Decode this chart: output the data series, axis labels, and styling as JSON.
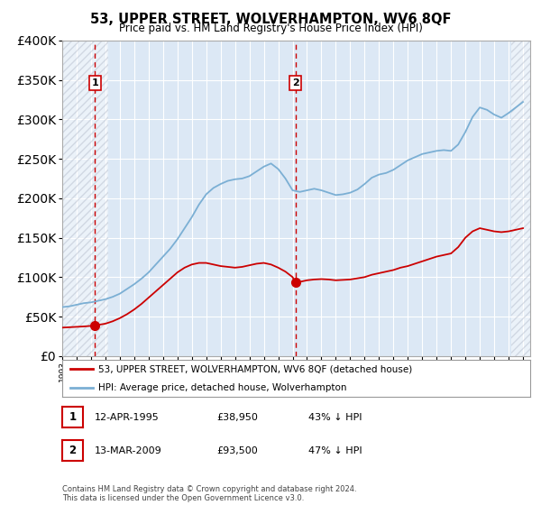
{
  "title": "53, UPPER STREET, WOLVERHAMPTON, WV6 8QF",
  "subtitle": "Price paid vs. HM Land Registry's House Price Index (HPI)",
  "legend_line1": "53, UPPER STREET, WOLVERHAMPTON, WV6 8QF (detached house)",
  "legend_line2": "HPI: Average price, detached house, Wolverhampton",
  "footnote": "Contains HM Land Registry data © Crown copyright and database right 2024.\nThis data is licensed under the Open Government Licence v3.0.",
  "sale1_date": "12-APR-1995",
  "sale1_price": "£38,950",
  "sale1_hpi": "43% ↓ HPI",
  "sale2_date": "13-MAR-2009",
  "sale2_price": "£93,500",
  "sale2_hpi": "47% ↓ HPI",
  "sale1_x": 1995.27,
  "sale1_y": 38950,
  "sale2_x": 2009.19,
  "sale2_y": 93500,
  "hpi_color": "#7bafd4",
  "price_color": "#cc0000",
  "vline_color": "#cc0000",
  "background_plot": "#dce8f5",
  "ylim": [
    0,
    400000
  ],
  "xlim_start": 1993.0,
  "xlim_end": 2025.5,
  "hatch_end": 1996.2,
  "hatch_start2": 2024.2
}
